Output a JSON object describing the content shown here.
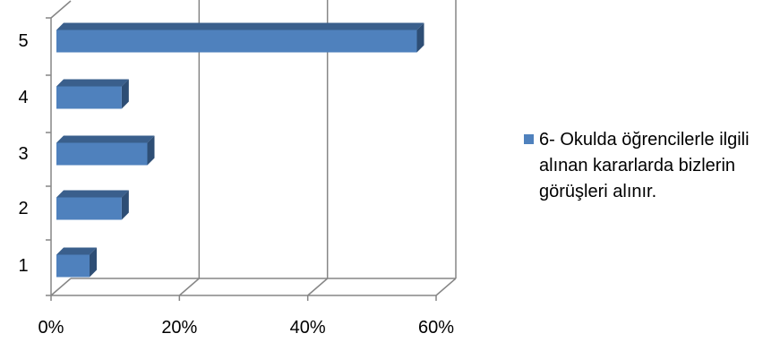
{
  "chart_data": {
    "type": "bar",
    "orientation": "horizontal",
    "style": "3d",
    "categories": [
      "1",
      "2",
      "3",
      "4",
      "5"
    ],
    "series": [
      {
        "name": "6- Okulda öğrencilerle ilgili alınan kararlarda bizlerin görüşleri alınır.",
        "values": [
          0.06,
          0.11,
          0.15,
          0.11,
          0.57
        ]
      }
    ],
    "x_ticks": [
      "0%",
      "20%",
      "40%",
      "60%"
    ],
    "xlim": [
      0,
      0.6
    ],
    "grid": true,
    "legend_position": "right",
    "colors": {
      "bar_front": "#4F81BD",
      "bar_top": "#3A5F8C",
      "bar_side": "#2E4E75",
      "grid": "#868686"
    }
  }
}
